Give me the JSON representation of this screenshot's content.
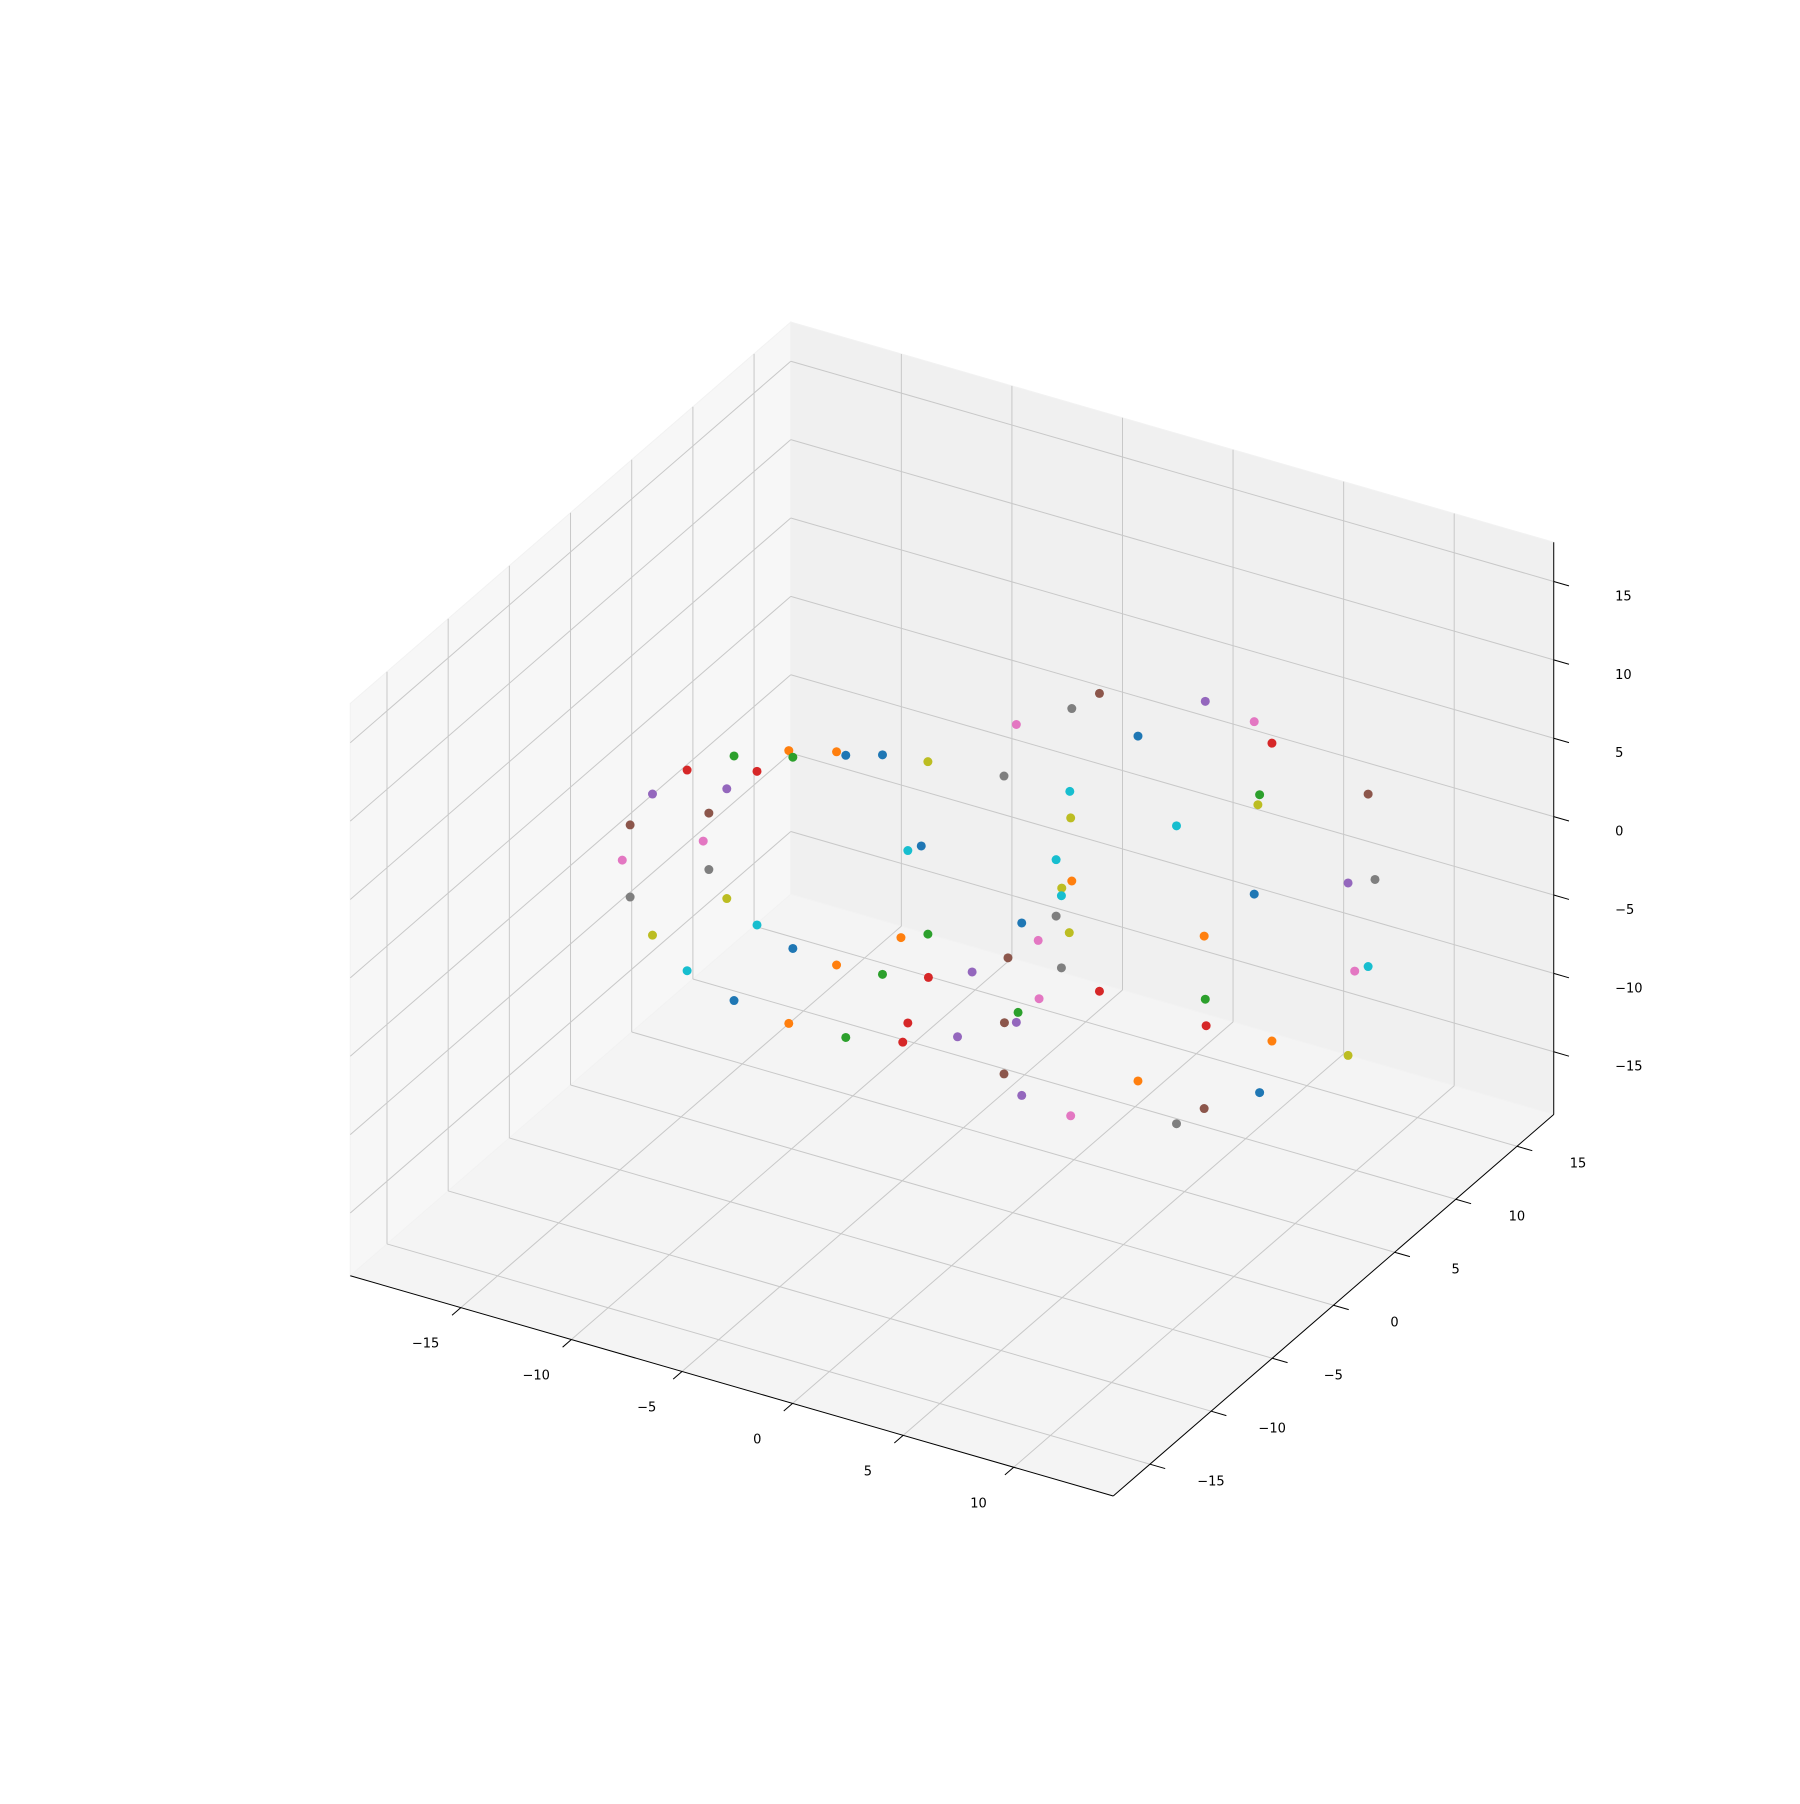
{
  "chart_data": {
    "type": "scatter",
    "grid": true,
    "xlim": [
      -20,
      14.5
    ],
    "ylim": [
      -18,
      18
    ],
    "zlim": [
      -19,
      17.5
    ],
    "xticks": [
      {
        "value": -15,
        "label": "−15"
      },
      {
        "value": -10,
        "label": "−10"
      },
      {
        "value": -5,
        "label": "−5"
      },
      0,
      5,
      10
    ],
    "yticks": [
      {
        "value": -15,
        "label": "−15"
      },
      {
        "value": -10,
        "label": "−10"
      },
      {
        "value": -5,
        "label": "−5"
      },
      0,
      5,
      10,
      15
    ],
    "zticks": [
      {
        "value": -15,
        "label": "−15"
      },
      {
        "value": -10,
        "label": "−10"
      },
      {
        "value": -5,
        "label": "−5"
      },
      0,
      5,
      10,
      15
    ],
    "series": [
      {
        "color": "#1f77b4",
        "x": [
          -7,
          -11.5,
          -7,
          -10.5,
          9.5,
          4,
          -5.8,
          4,
          4
        ],
        "y": [
          -1,
          -2,
          2,
          1,
          3,
          12.5,
          3,
          -6.5,
          3
        ],
        "z": [
          8,
          -8.8,
          6,
          -7.1,
          -9.5,
          -5.5,
          0,
          5.5,
          11
        ]
      },
      {
        "color": "#ff7f0e",
        "x": [
          -9.3,
          -9.3,
          -8.8,
          -8.8,
          7.9,
          -2.7,
          -2.9,
          10.7,
          4
        ],
        "y": [
          -1.5,
          -1.5,
          1.5,
          1.5,
          6.9,
          9.7,
          -3.9,
          -3.7,
          3
        ],
        "z": [
          7.7,
          -9.7,
          5.8,
          -7.8,
          -9.5,
          -5.5,
          0,
          5.5,
          -11
        ]
      },
      {
        "color": "#2ca02c",
        "x": [
          -11.5,
          -7,
          -10.5,
          -7,
          4,
          -5.5,
          4,
          9.5
        ],
        "y": [
          -2,
          -1,
          1,
          2,
          8.5,
          3,
          -6.8,
          3
        ],
        "z": [
          6.8,
          -10,
          5.1,
          -8,
          -9.5,
          -5.5,
          0,
          9.5
        ]
      },
      {
        "color": "#d62728",
        "x": [
          -13.4,
          -4.7,
          -11.9,
          -5.2,
          0.1,
          -2.7,
          10.9,
          7.9
        ],
        "y": [
          -2.4,
          -0.5,
          0.6,
          2.5,
          6.9,
          -3.7,
          -3.9,
          6.9
        ],
        "z": [
          5.4,
          -9.7,
          3.9,
          -7.8,
          -9.5,
          -5.5,
          0,
          9.5
        ]
      },
      {
        "color": "#9467bd",
        "x": [
          -14.8,
          -2.5,
          -13.1,
          -3.5,
          -1.5,
          4,
          13.5,
          4
        ],
        "y": [
          -2.7,
          0,
          0.3,
          3,
          3,
          -6.5,
          3,
          8.5
        ],
        "z": [
          3.5,
          -8.8,
          2.5,
          -7.1,
          -9.5,
          -5.5,
          5.5,
          9.5
        ]
      },
      {
        "color": "#8c564b",
        "x": [
          -15.7,
          -0.6,
          -13.8,
          -2.1,
          0.1,
          10.7,
          10.7,
          0.1
        ],
        "y": [
          -2.9,
          0.4,
          0.1,
          3.4,
          -0.9,
          -3.7,
          9.7,
          6.9
        ],
        "z": [
          1.3,
          -7.4,
          0.8,
          -5.9,
          -9.5,
          -5.5,
          5.5,
          9.5
        ]
      },
      {
        "color": "#e377c2",
        "x": [
          -16,
          0.8,
          -14,
          -0.9,
          4,
          13.8,
          4,
          -1.5
        ],
        "y": [
          -3,
          0.7,
          0,
          3.7,
          -2.5,
          3,
          12.5,
          3
        ],
        "z": [
          -1,
          -5.5,
          -1,
          -4.5,
          -9.5,
          0,
          5.5,
          9.5
        ]
      },
      {
        "color": "#7f7f7f",
        "x": [
          -15.7,
          1.7,
          -13.8,
          -0.2,
          7.9,
          10.9,
          -2.7,
          0.1
        ],
        "y": [
          -2.9,
          0.9,
          0.1,
          3.9,
          -0.9,
          9.9,
          9.7,
          -0.9
        ],
        "z": [
          -3.3,
          -3.3,
          -2.8,
          -2.8,
          -9.5,
          0,
          5.5,
          9.5
        ]
      },
      {
        "color": "#bcbd22",
        "x": [
          -14.8,
          2,
          -13.1,
          0,
          13.5,
          4,
          -5.5,
          4
        ],
        "y": [
          -2.7,
          1,
          0.3,
          4,
          3,
          12.8,
          3,
          -2.5
        ],
        "z": [
          -5.5,
          -1,
          -4.5,
          -1,
          -5.5,
          0,
          5.5,
          9.5
        ]
      },
      {
        "color": "#17becf",
        "x": [
          -13.4,
          1.7,
          -11.9,
          -0.2,
          10.7,
          -2.9,
          -2.7,
          7.9
        ],
        "y": [
          -2.4,
          0.9,
          0.6,
          3.9,
          9.7,
          9.9,
          -3.7,
          -0.9
        ],
        "z": [
          -7.4,
          1.3,
          -5.9,
          0.8,
          -5.5,
          0,
          5.5,
          9.5
        ]
      }
    ]
  }
}
